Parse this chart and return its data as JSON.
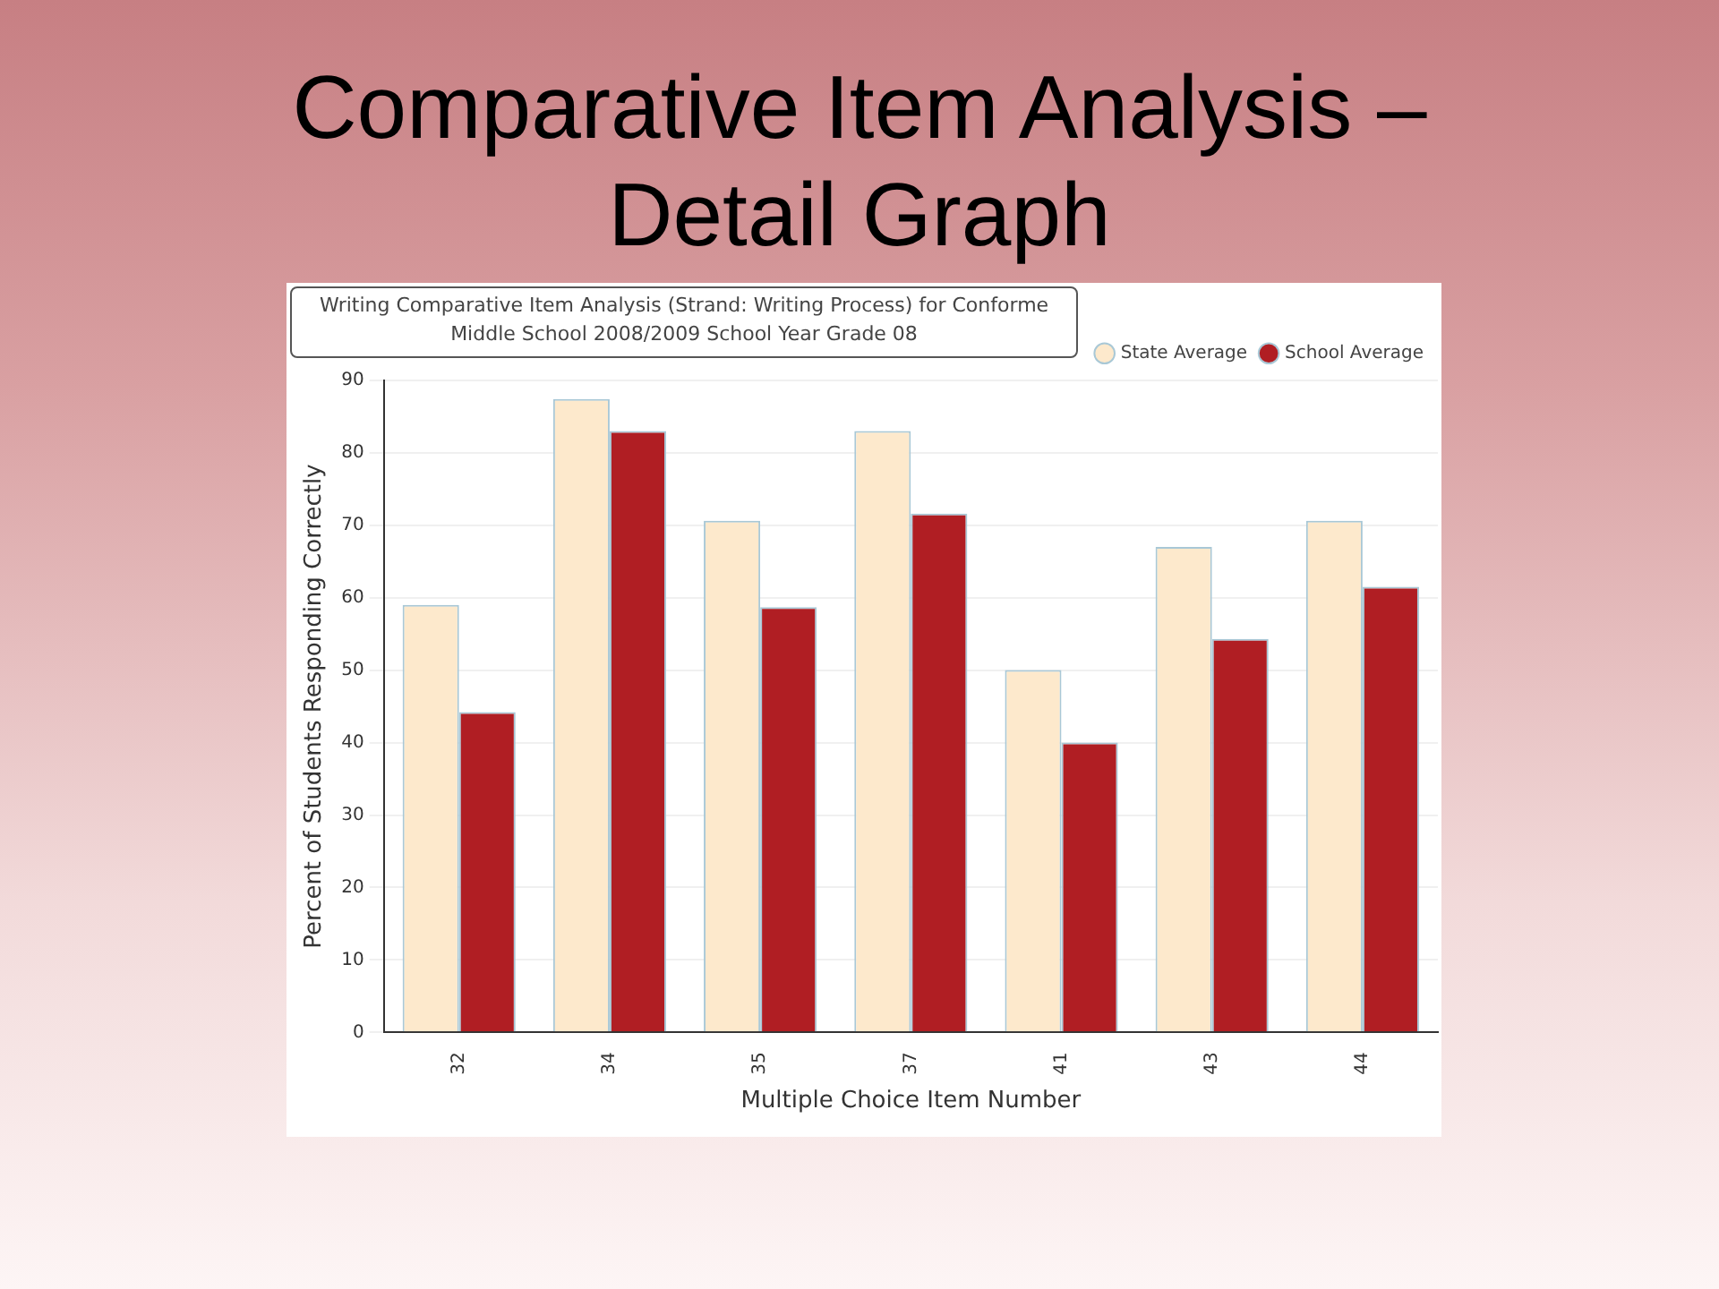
{
  "chart_data": {
    "type": "bar",
    "title": "Comparative Item Analysis – Detail Graph",
    "subtitle": "Writing Comparative Item Analysis (Strand: Writing Process) for Conforme Middle School 2008/2009 School Year Grade 08",
    "xlabel": "Multiple Choice Item Number",
    "ylabel": "Percent of Students Responding Correctly",
    "categories": [
      "32",
      "34",
      "35",
      "37",
      "41",
      "43",
      "44"
    ],
    "series": [
      {
        "name": "State Average",
        "color": "#fde9cc",
        "values": [
          59,
          87.4,
          70.6,
          83,
          50,
          67,
          70.6
        ]
      },
      {
        "name": "School Average",
        "color": "#b01e23",
        "values": [
          44.2,
          83,
          58.7,
          71.6,
          40,
          54.3,
          61.5
        ]
      }
    ],
    "ylim": [
      0,
      90
    ],
    "yticks": [
      0,
      10,
      20,
      30,
      40,
      50,
      60,
      70,
      80,
      90
    ],
    "grid": "y",
    "legend": "top right"
  }
}
